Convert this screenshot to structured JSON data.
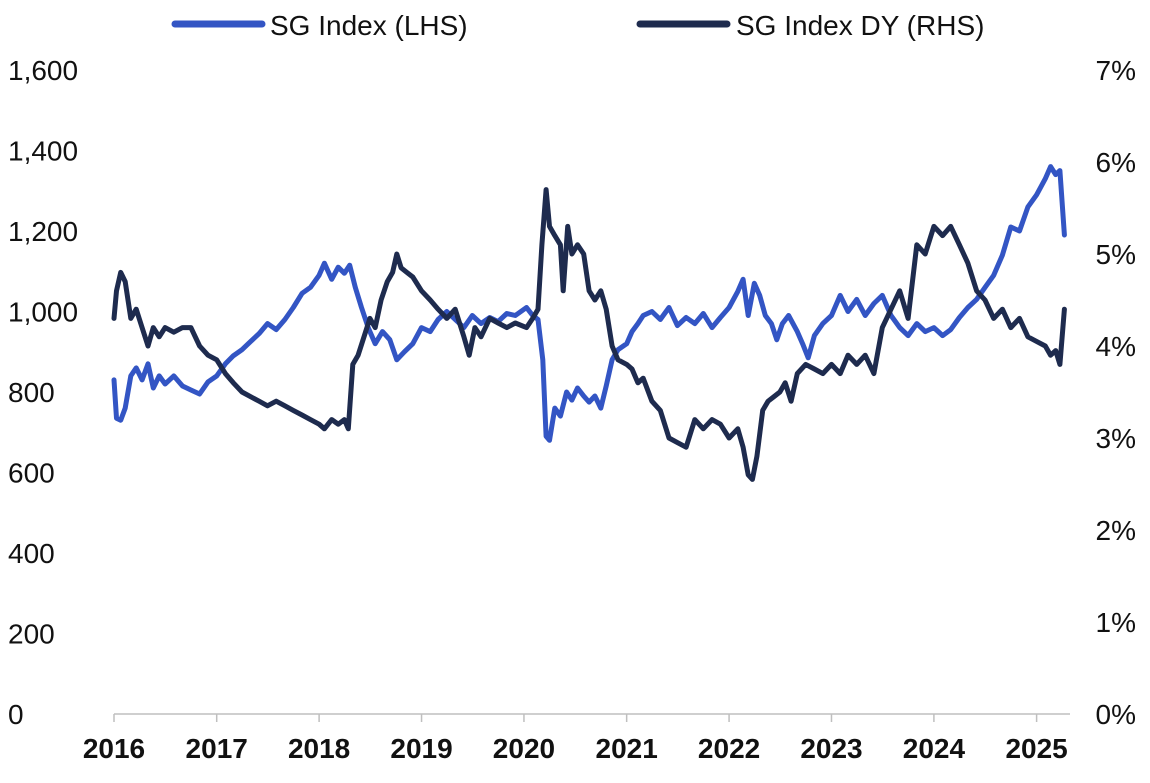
{
  "chart_data": {
    "type": "line",
    "title": "",
    "legend": {
      "position": "top-center"
    },
    "grid": false,
    "x_axis": {
      "type": "date",
      "range": [
        "2016-01-01",
        "2025-04-30"
      ],
      "tick_labels": [
        "2016",
        "2017",
        "2018",
        "2019",
        "2020",
        "2021",
        "2022",
        "2023",
        "2024",
        "2025"
      ]
    },
    "y_axis_left": {
      "range": [
        0,
        1600
      ],
      "tick_labels": [
        "0",
        "200",
        "400",
        "600",
        "800",
        "1,000",
        "1,200",
        "1,400",
        "1,600"
      ]
    },
    "y_axis_right": {
      "range": [
        0,
        7
      ],
      "unit": "%",
      "tick_labels": [
        "0%",
        "1%",
        "2%",
        "3%",
        "4%",
        "5%",
        "6%",
        "7%"
      ]
    },
    "series": [
      {
        "name": "SG Index (LHS)",
        "axis": "left",
        "color": "#3355c4",
        "points": [
          [
            "2016-01-01",
            830
          ],
          [
            "2016-01-10",
            735
          ],
          [
            "2016-01-25",
            730
          ],
          [
            "2016-02-10",
            760
          ],
          [
            "2016-03-01",
            840
          ],
          [
            "2016-03-20",
            860
          ],
          [
            "2016-04-10",
            830
          ],
          [
            "2016-05-01",
            870
          ],
          [
            "2016-05-20",
            810
          ],
          [
            "2016-06-10",
            840
          ],
          [
            "2016-07-01",
            820
          ],
          [
            "2016-08-01",
            840
          ],
          [
            "2016-09-01",
            815
          ],
          [
            "2016-10-01",
            805
          ],
          [
            "2016-11-01",
            795
          ],
          [
            "2016-12-01",
            825
          ],
          [
            "2017-01-01",
            840
          ],
          [
            "2017-02-01",
            870
          ],
          [
            "2017-03-01",
            890
          ],
          [
            "2017-04-01",
            905
          ],
          [
            "2017-05-01",
            925
          ],
          [
            "2017-06-01",
            945
          ],
          [
            "2017-07-01",
            970
          ],
          [
            "2017-08-01",
            955
          ],
          [
            "2017-09-01",
            980
          ],
          [
            "2017-10-01",
            1010
          ],
          [
            "2017-11-01",
            1045
          ],
          [
            "2017-12-01",
            1060
          ],
          [
            "2018-01-01",
            1090
          ],
          [
            "2018-01-20",
            1120
          ],
          [
            "2018-02-15",
            1080
          ],
          [
            "2018-03-10",
            1110
          ],
          [
            "2018-04-01",
            1095
          ],
          [
            "2018-04-20",
            1115
          ],
          [
            "2018-05-10",
            1060
          ],
          [
            "2018-06-01",
            1010
          ],
          [
            "2018-06-25",
            960
          ],
          [
            "2018-07-20",
            920
          ],
          [
            "2018-08-15",
            950
          ],
          [
            "2018-09-10",
            930
          ],
          [
            "2018-10-05",
            880
          ],
          [
            "2018-11-01",
            900
          ],
          [
            "2018-12-01",
            920
          ],
          [
            "2019-01-01",
            960
          ],
          [
            "2019-02-01",
            950
          ],
          [
            "2019-03-01",
            980
          ],
          [
            "2019-04-01",
            1000
          ],
          [
            "2019-05-01",
            980
          ],
          [
            "2019-06-01",
            960
          ],
          [
            "2019-07-01",
            990
          ],
          [
            "2019-08-01",
            970
          ],
          [
            "2019-09-01",
            985
          ],
          [
            "2019-10-01",
            975
          ],
          [
            "2019-11-01",
            995
          ],
          [
            "2019-12-01",
            990
          ],
          [
            "2020-01-10",
            1010
          ],
          [
            "2020-02-01",
            990
          ],
          [
            "2020-02-20",
            980
          ],
          [
            "2020-03-08",
            880
          ],
          [
            "2020-03-20",
            690
          ],
          [
            "2020-04-01",
            680
          ],
          [
            "2020-04-20",
            760
          ],
          [
            "2020-05-10",
            740
          ],
          [
            "2020-06-01",
            800
          ],
          [
            "2020-06-20",
            780
          ],
          [
            "2020-07-10",
            810
          ],
          [
            "2020-08-01",
            790
          ],
          [
            "2020-08-20",
            775
          ],
          [
            "2020-09-10",
            790
          ],
          [
            "2020-10-01",
            760
          ],
          [
            "2020-10-20",
            815
          ],
          [
            "2020-11-10",
            880
          ],
          [
            "2020-12-01",
            905
          ],
          [
            "2021-01-01",
            920
          ],
          [
            "2021-01-20",
            950
          ],
          [
            "2021-02-10",
            970
          ],
          [
            "2021-03-01",
            990
          ],
          [
            "2021-04-01",
            1000
          ],
          [
            "2021-05-01",
            980
          ],
          [
            "2021-06-01",
            1010
          ],
          [
            "2021-07-01",
            965
          ],
          [
            "2021-08-01",
            985
          ],
          [
            "2021-09-01",
            970
          ],
          [
            "2021-10-01",
            995
          ],
          [
            "2021-11-01",
            960
          ],
          [
            "2021-12-01",
            985
          ],
          [
            "2022-01-01",
            1010
          ],
          [
            "2022-02-01",
            1050
          ],
          [
            "2022-02-20",
            1080
          ],
          [
            "2022-03-10",
            990
          ],
          [
            "2022-04-01",
            1070
          ],
          [
            "2022-04-20",
            1040
          ],
          [
            "2022-05-10",
            990
          ],
          [
            "2022-06-01",
            970
          ],
          [
            "2022-06-20",
            930
          ],
          [
            "2022-07-10",
            970
          ],
          [
            "2022-08-01",
            990
          ],
          [
            "2022-09-01",
            950
          ],
          [
            "2022-09-20",
            920
          ],
          [
            "2022-10-10",
            885
          ],
          [
            "2022-11-01",
            940
          ],
          [
            "2022-12-01",
            970
          ],
          [
            "2023-01-01",
            990
          ],
          [
            "2023-02-01",
            1040
          ],
          [
            "2023-03-01",
            1000
          ],
          [
            "2023-04-01",
            1030
          ],
          [
            "2023-05-01",
            990
          ],
          [
            "2023-06-01",
            1020
          ],
          [
            "2023-07-01",
            1040
          ],
          [
            "2023-08-01",
            990
          ],
          [
            "2023-09-01",
            960
          ],
          [
            "2023-10-01",
            940
          ],
          [
            "2023-11-01",
            970
          ],
          [
            "2023-12-01",
            950
          ],
          [
            "2024-01-01",
            960
          ],
          [
            "2024-02-01",
            940
          ],
          [
            "2024-03-01",
            955
          ],
          [
            "2024-04-01",
            985
          ],
          [
            "2024-05-01",
            1010
          ],
          [
            "2024-06-01",
            1030
          ],
          [
            "2024-07-01",
            1060
          ],
          [
            "2024-08-01",
            1090
          ],
          [
            "2024-09-01",
            1140
          ],
          [
            "2024-10-01",
            1210
          ],
          [
            "2024-11-01",
            1200
          ],
          [
            "2024-12-01",
            1260
          ],
          [
            "2025-01-01",
            1290
          ],
          [
            "2025-02-01",
            1330
          ],
          [
            "2025-02-20",
            1360
          ],
          [
            "2025-03-10",
            1340
          ],
          [
            "2025-03-25",
            1350
          ],
          [
            "2025-04-10",
            1190
          ]
        ]
      },
      {
        "name": "SG Index DY (RHS)",
        "axis": "right",
        "color": "#1e2b4e",
        "points": [
          [
            "2016-01-01",
            4.3
          ],
          [
            "2016-01-10",
            4.6
          ],
          [
            "2016-01-25",
            4.8
          ],
          [
            "2016-02-10",
            4.7
          ],
          [
            "2016-03-01",
            4.3
          ],
          [
            "2016-03-20",
            4.4
          ],
          [
            "2016-04-10",
            4.2
          ],
          [
            "2016-05-01",
            4.0
          ],
          [
            "2016-05-20",
            4.2
          ],
          [
            "2016-06-10",
            4.1
          ],
          [
            "2016-07-01",
            4.2
          ],
          [
            "2016-08-01",
            4.15
          ],
          [
            "2016-09-01",
            4.2
          ],
          [
            "2016-10-01",
            4.2
          ],
          [
            "2016-11-01",
            4.0
          ],
          [
            "2016-12-01",
            3.9
          ],
          [
            "2017-01-01",
            3.85
          ],
          [
            "2017-02-01",
            3.7
          ],
          [
            "2017-03-01",
            3.6
          ],
          [
            "2017-04-01",
            3.5
          ],
          [
            "2017-05-01",
            3.45
          ],
          [
            "2017-06-01",
            3.4
          ],
          [
            "2017-07-01",
            3.35
          ],
          [
            "2017-08-01",
            3.4
          ],
          [
            "2017-09-01",
            3.35
          ],
          [
            "2017-10-01",
            3.3
          ],
          [
            "2017-11-01",
            3.25
          ],
          [
            "2017-12-01",
            3.2
          ],
          [
            "2018-01-01",
            3.15
          ],
          [
            "2018-01-20",
            3.1
          ],
          [
            "2018-02-15",
            3.2
          ],
          [
            "2018-03-10",
            3.15
          ],
          [
            "2018-04-01",
            3.2
          ],
          [
            "2018-04-15",
            3.1
          ],
          [
            "2018-05-01",
            3.8
          ],
          [
            "2018-05-20",
            3.9
          ],
          [
            "2018-06-10",
            4.1
          ],
          [
            "2018-07-01",
            4.3
          ],
          [
            "2018-07-20",
            4.2
          ],
          [
            "2018-08-10",
            4.5
          ],
          [
            "2018-09-01",
            4.7
          ],
          [
            "2018-09-20",
            4.8
          ],
          [
            "2018-10-05",
            5.0
          ],
          [
            "2018-10-20",
            4.85
          ],
          [
            "2018-11-10",
            4.8
          ],
          [
            "2018-12-01",
            4.75
          ],
          [
            "2019-01-01",
            4.6
          ],
          [
            "2019-02-01",
            4.5
          ],
          [
            "2019-03-01",
            4.4
          ],
          [
            "2019-04-01",
            4.3
          ],
          [
            "2019-05-01",
            4.4
          ],
          [
            "2019-06-01",
            4.1
          ],
          [
            "2019-06-20",
            3.9
          ],
          [
            "2019-07-10",
            4.2
          ],
          [
            "2019-08-01",
            4.1
          ],
          [
            "2019-09-01",
            4.3
          ],
          [
            "2019-10-01",
            4.25
          ],
          [
            "2019-11-01",
            4.2
          ],
          [
            "2019-12-01",
            4.25
          ],
          [
            "2020-01-10",
            4.2
          ],
          [
            "2020-02-01",
            4.3
          ],
          [
            "2020-02-20",
            4.4
          ],
          [
            "2020-03-05",
            5.1
          ],
          [
            "2020-03-20",
            5.7
          ],
          [
            "2020-04-01",
            5.3
          ],
          [
            "2020-04-20",
            5.2
          ],
          [
            "2020-05-10",
            5.1
          ],
          [
            "2020-05-20",
            4.6
          ],
          [
            "2020-06-05",
            5.3
          ],
          [
            "2020-06-20",
            5.0
          ],
          [
            "2020-07-10",
            5.1
          ],
          [
            "2020-08-01",
            5.0
          ],
          [
            "2020-08-20",
            4.6
          ],
          [
            "2020-09-10",
            4.5
          ],
          [
            "2020-10-01",
            4.6
          ],
          [
            "2020-10-20",
            4.4
          ],
          [
            "2020-11-10",
            4.0
          ],
          [
            "2020-12-01",
            3.85
          ],
          [
            "2021-01-01",
            3.8
          ],
          [
            "2021-01-20",
            3.75
          ],
          [
            "2021-02-10",
            3.6
          ],
          [
            "2021-03-01",
            3.65
          ],
          [
            "2021-04-01",
            3.4
          ],
          [
            "2021-05-01",
            3.3
          ],
          [
            "2021-06-01",
            3.0
          ],
          [
            "2021-07-01",
            2.95
          ],
          [
            "2021-08-01",
            2.9
          ],
          [
            "2021-09-01",
            3.2
          ],
          [
            "2021-10-01",
            3.1
          ],
          [
            "2021-11-01",
            3.2
          ],
          [
            "2021-12-01",
            3.15
          ],
          [
            "2022-01-01",
            3.0
          ],
          [
            "2022-02-01",
            3.1
          ],
          [
            "2022-02-20",
            2.9
          ],
          [
            "2022-03-10",
            2.6
          ],
          [
            "2022-03-25",
            2.55
          ],
          [
            "2022-04-10",
            2.8
          ],
          [
            "2022-05-01",
            3.3
          ],
          [
            "2022-05-20",
            3.4
          ],
          [
            "2022-06-10",
            3.45
          ],
          [
            "2022-07-01",
            3.5
          ],
          [
            "2022-07-20",
            3.6
          ],
          [
            "2022-08-10",
            3.4
          ],
          [
            "2022-09-01",
            3.7
          ],
          [
            "2022-10-01",
            3.8
          ],
          [
            "2022-11-01",
            3.75
          ],
          [
            "2022-12-01",
            3.7
          ],
          [
            "2023-01-01",
            3.8
          ],
          [
            "2023-02-01",
            3.7
          ],
          [
            "2023-03-01",
            3.9
          ],
          [
            "2023-04-01",
            3.8
          ],
          [
            "2023-05-01",
            3.9
          ],
          [
            "2023-06-01",
            3.7
          ],
          [
            "2023-07-01",
            4.2
          ],
          [
            "2023-08-01",
            4.4
          ],
          [
            "2023-09-01",
            4.6
          ],
          [
            "2023-10-01",
            4.3
          ],
          [
            "2023-11-01",
            5.1
          ],
          [
            "2023-12-01",
            5.0
          ],
          [
            "2024-01-01",
            5.3
          ],
          [
            "2024-02-01",
            5.2
          ],
          [
            "2024-03-01",
            5.3
          ],
          [
            "2024-04-01",
            5.1
          ],
          [
            "2024-05-01",
            4.9
          ],
          [
            "2024-06-01",
            4.6
          ],
          [
            "2024-07-01",
            4.5
          ],
          [
            "2024-08-01",
            4.3
          ],
          [
            "2024-09-01",
            4.4
          ],
          [
            "2024-10-01",
            4.2
          ],
          [
            "2024-11-01",
            4.3
          ],
          [
            "2024-12-01",
            4.1
          ],
          [
            "2025-01-01",
            4.05
          ],
          [
            "2025-02-01",
            4.0
          ],
          [
            "2025-02-20",
            3.9
          ],
          [
            "2025-03-10",
            3.95
          ],
          [
            "2025-03-25",
            3.8
          ],
          [
            "2025-04-10",
            4.4
          ]
        ]
      }
    ]
  }
}
